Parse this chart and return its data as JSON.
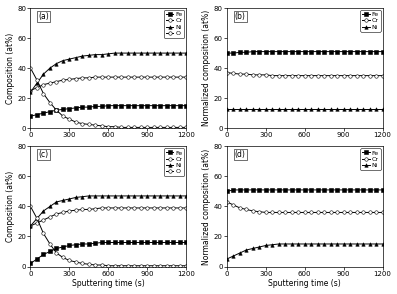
{
  "panels": [
    "(a)",
    "(b)",
    "(c)",
    "(d)"
  ],
  "xlim": [
    0,
    1200
  ],
  "x_ticks": [
    0,
    300,
    600,
    900,
    1200
  ],
  "xlabel": "Sputtering time (s)",
  "panel_a": {
    "ylabel": "Composition (at%)",
    "ylim": [
      0,
      80
    ],
    "y_ticks": [
      0,
      20,
      40,
      60,
      80
    ],
    "series": [
      {
        "name": "Fe",
        "marker": "s",
        "fill": true,
        "color": "black",
        "data": [
          8,
          9,
          10,
          11,
          12,
          12.5,
          13,
          13.5,
          14,
          14,
          14.5,
          14.5,
          15,
          15,
          15,
          15,
          15,
          15,
          15,
          15,
          15,
          15,
          15,
          15,
          15
        ]
      },
      {
        "name": "Cr",
        "marker": "o",
        "fill": false,
        "color": "black",
        "data": [
          25,
          27,
          29,
          30,
          31,
          32,
          32.5,
          33,
          33.5,
          33.5,
          34,
          34,
          34,
          34,
          34,
          34,
          34,
          34,
          34,
          34,
          34,
          34,
          34,
          34,
          34
        ]
      },
      {
        "name": "Ni",
        "marker": "^",
        "fill": true,
        "color": "black",
        "data": [
          24,
          30,
          36,
          40,
          43,
          45,
          46,
          47,
          48,
          48.5,
          49,
          49,
          49.5,
          50,
          50,
          50,
          50,
          50,
          50,
          50,
          50,
          50,
          50,
          50,
          50
        ]
      },
      {
        "name": "O",
        "marker": "o",
        "fill": false,
        "color": "black",
        "data": [
          40,
          32,
          23,
          17,
          12,
          8,
          6,
          4,
          3,
          2.5,
          2,
          1.5,
          1,
          1,
          0.5,
          0.5,
          0.5,
          0.5,
          0.5,
          0.5,
          0.5,
          0.5,
          0.5,
          0.5,
          0.5
        ]
      }
    ]
  },
  "panel_b": {
    "ylabel": "Normalized composition (at%)",
    "ylim": [
      0,
      80
    ],
    "y_ticks": [
      0,
      20,
      40,
      60,
      80
    ],
    "series": [
      {
        "name": "Fe",
        "marker": "s",
        "fill": true,
        "color": "black",
        "data": [
          50,
          50,
          50.5,
          50.5,
          51,
          51,
          51,
          51,
          51,
          51,
          51,
          51,
          51,
          51,
          51,
          51,
          51,
          51,
          51,
          51,
          51,
          51,
          51,
          51,
          51
        ]
      },
      {
        "name": "Cr",
        "marker": "o",
        "fill": false,
        "color": "black",
        "data": [
          37,
          36.5,
          36,
          36,
          35.5,
          35.5,
          35.5,
          35,
          35,
          35,
          35,
          35,
          35,
          35,
          35,
          35,
          35,
          35,
          35,
          35,
          35,
          35,
          35,
          35,
          35
        ]
      },
      {
        "name": "Ni",
        "marker": "^",
        "fill": true,
        "color": "black",
        "data": [
          13,
          13,
          13,
          13,
          13,
          13,
          13,
          13,
          13,
          13,
          13,
          13,
          13,
          13,
          13,
          13,
          13,
          13,
          13,
          13,
          13,
          13,
          13,
          13,
          13
        ]
      }
    ]
  },
  "panel_c": {
    "ylabel": "Composition (at%)",
    "ylim": [
      0,
      80
    ],
    "y_ticks": [
      0,
      20,
      40,
      60,
      80
    ],
    "series": [
      {
        "name": "Fe",
        "marker": "s",
        "fill": true,
        "color": "black",
        "data": [
          2,
          5,
          8,
          10,
          12,
          13,
          14,
          14.5,
          15,
          15,
          15.5,
          16,
          16,
          16,
          16,
          16,
          16,
          16,
          16,
          16,
          16,
          16,
          16,
          16,
          16
        ]
      },
      {
        "name": "Cr",
        "marker": "o",
        "fill": false,
        "color": "black",
        "data": [
          27,
          29,
          31,
          33,
          35,
          36,
          37,
          37.5,
          38,
          38,
          38.5,
          39,
          39,
          39,
          39,
          39,
          39,
          39,
          39,
          39,
          39,
          39,
          39,
          39,
          39
        ]
      },
      {
        "name": "Ni",
        "marker": "^",
        "fill": true,
        "color": "black",
        "data": [
          27,
          32,
          37,
          40,
          43,
          44,
          45,
          46,
          46.5,
          47,
          47,
          47,
          47,
          47,
          47,
          47,
          47,
          47,
          47,
          47,
          47,
          47,
          47,
          47,
          47
        ]
      },
      {
        "name": "O",
        "marker": "o",
        "fill": false,
        "color": "black",
        "data": [
          40,
          32,
          22,
          15,
          9,
          6,
          4,
          3,
          2,
          1.5,
          1,
          1,
          0.5,
          0.5,
          0.5,
          0.5,
          0.5,
          0.5,
          0.5,
          0.5,
          0.5,
          0.5,
          0.5,
          0.5,
          0.5
        ]
      }
    ]
  },
  "panel_d": {
    "ylabel": "Normalized composition (at%)",
    "ylim": [
      0,
      80
    ],
    "y_ticks": [
      0,
      20,
      40,
      60,
      80
    ],
    "series": [
      {
        "name": "Fe",
        "marker": "s",
        "fill": true,
        "color": "black",
        "data": [
          50,
          51,
          51,
          51,
          51,
          51,
          51,
          51,
          51,
          51,
          51,
          51,
          51,
          51,
          51,
          51,
          51,
          51,
          51,
          51,
          51,
          51,
          51,
          51,
          51
        ]
      },
      {
        "name": "Cr",
        "marker": "o",
        "fill": false,
        "color": "black",
        "data": [
          43,
          41,
          39,
          38,
          37,
          36.5,
          36,
          36,
          36,
          36,
          36,
          36,
          36,
          36,
          36,
          36,
          36,
          36,
          36,
          36,
          36,
          36,
          36,
          36,
          36
        ]
      },
      {
        "name": "Ni",
        "marker": "^",
        "fill": true,
        "color": "black",
        "data": [
          5,
          7,
          9,
          11,
          12,
          13,
          14,
          14.5,
          15,
          15,
          15,
          15,
          15,
          15,
          15,
          15,
          15,
          15,
          15,
          15,
          15,
          15,
          15,
          15,
          15
        ]
      }
    ]
  },
  "marker_size": 2.5,
  "line_width": 0.7,
  "font_size": 5.5,
  "tick_font_size": 5,
  "legend_font_size": 4.5
}
